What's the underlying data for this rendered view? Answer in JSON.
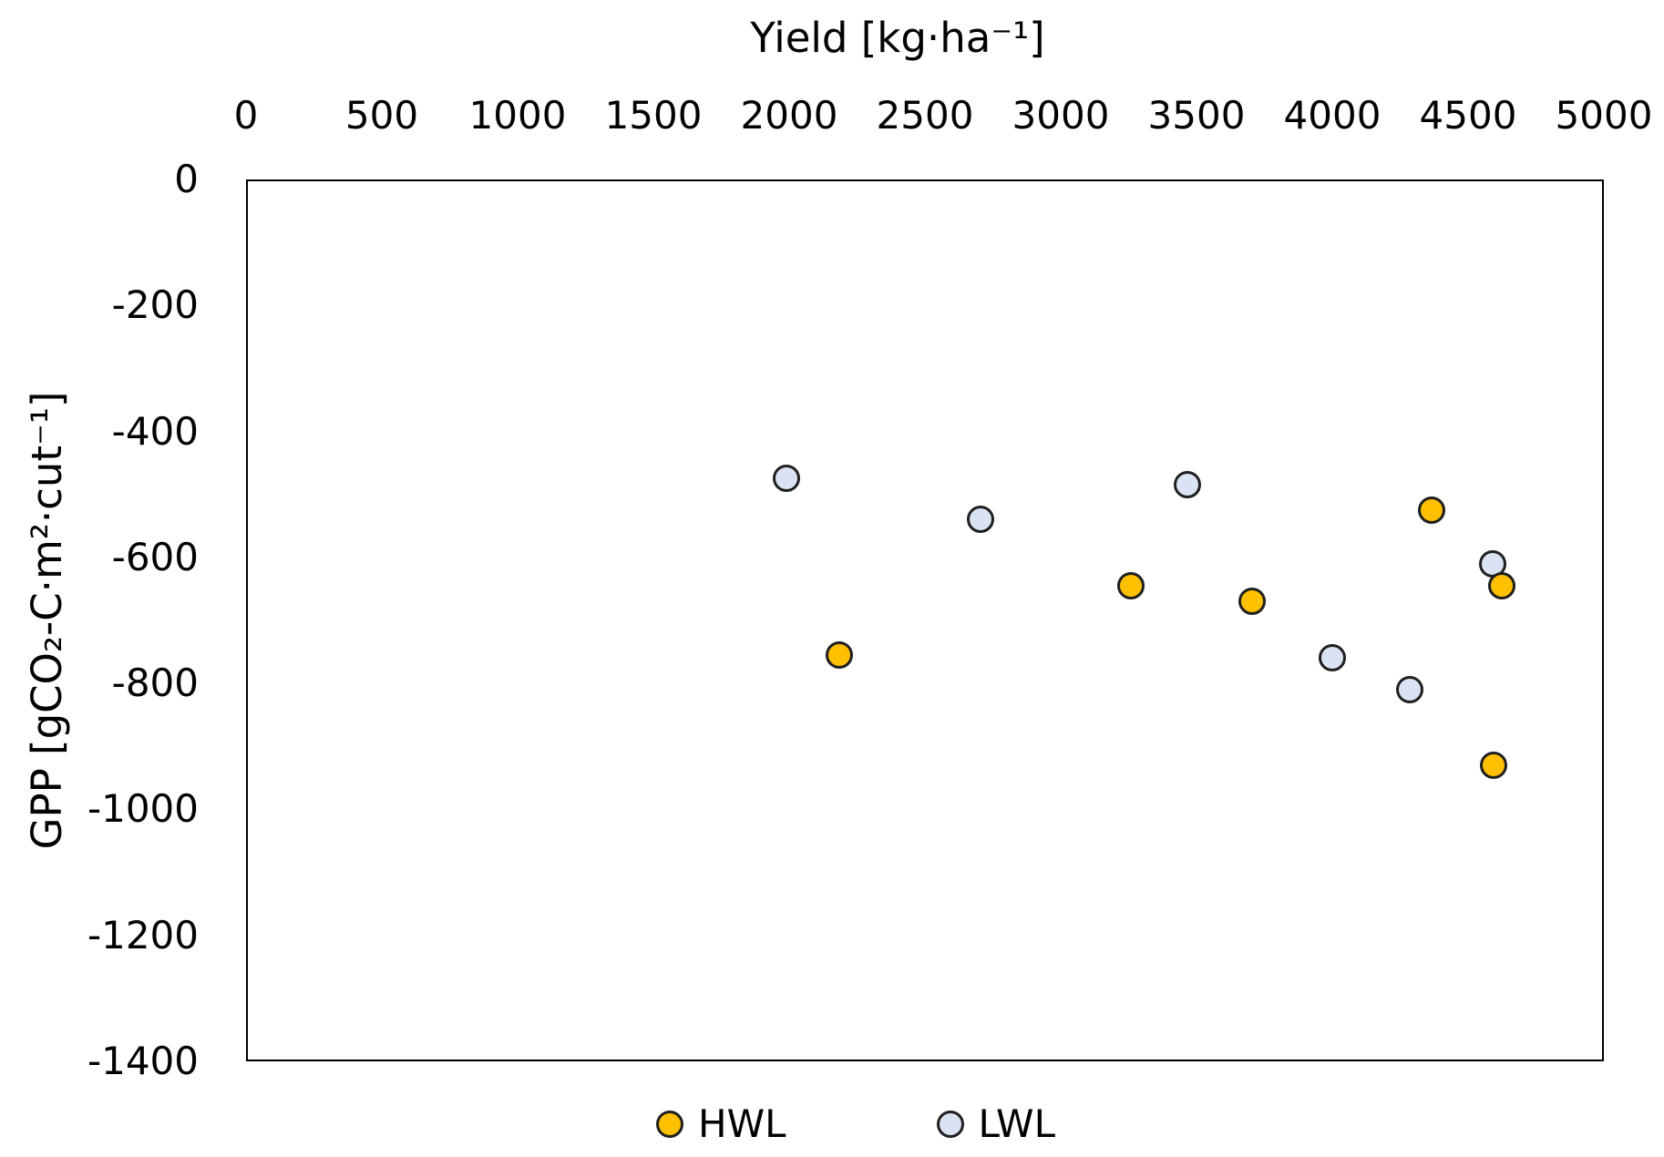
{
  "page": {
    "background": "#ffffff"
  },
  "chart_data": {
    "type": "scatter",
    "title": "",
    "grid": false,
    "frame_color": "#000000",
    "text_color": "#000000",
    "legend_position": "bottom",
    "x_axis": {
      "title": "Yield [kg·ha⁻¹]",
      "position": "top",
      "min": 0,
      "max": 5000,
      "tick_step": 500,
      "ticks": [
        0,
        500,
        1000,
        1500,
        2000,
        2500,
        3000,
        3500,
        4000,
        4500,
        5000
      ]
    },
    "y_axis": {
      "title": "GPP [gCO₂-C·m²·cut⁻¹]",
      "position": "left",
      "min": -1400,
      "max": 0,
      "tick_step": 200,
      "ticks": [
        0,
        -200,
        -400,
        -600,
        -800,
        -1000,
        -1200,
        -1400
      ]
    },
    "series": [
      {
        "name": "HWL",
        "marker": "circle",
        "marker_fill": "#FFC000",
        "marker_border": "#1F1F1F",
        "points": [
          {
            "x": 2185,
            "y": -755
          },
          {
            "x": 3260,
            "y": -645
          },
          {
            "x": 3705,
            "y": -670
          },
          {
            "x": 4365,
            "y": -525
          },
          {
            "x": 4625,
            "y": -645
          },
          {
            "x": 4595,
            "y": -930
          }
        ]
      },
      {
        "name": "LWL",
        "marker": "circle",
        "marker_fill": "#DAE3F3",
        "marker_border": "#1F1F1F",
        "points": [
          {
            "x": 1990,
            "y": -475
          },
          {
            "x": 2705,
            "y": -540
          },
          {
            "x": 3465,
            "y": -485
          },
          {
            "x": 4000,
            "y": -760
          },
          {
            "x": 4285,
            "y": -810
          },
          {
            "x": 4590,
            "y": -610
          }
        ]
      }
    ]
  }
}
